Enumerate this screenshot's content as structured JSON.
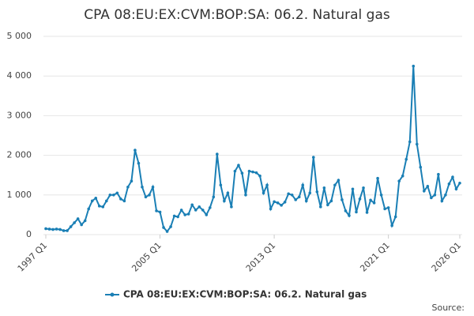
{
  "chart_data": {
    "type": "line",
    "title": "CPA 08:EU:EX:CVM:BOP:SA: 06.2. Natural gas",
    "source": "Source:",
    "categories": [
      "1997 Q1",
      null,
      null,
      null,
      null,
      null,
      null,
      null,
      null,
      null,
      null,
      null,
      null,
      null,
      null,
      null,
      null,
      null,
      null,
      null,
      null,
      null,
      null,
      null,
      null,
      null,
      null,
      null,
      null,
      null,
      null,
      null,
      "2005 Q1",
      null,
      null,
      null,
      null,
      null,
      null,
      null,
      null,
      null,
      null,
      null,
      null,
      null,
      null,
      null,
      null,
      null,
      null,
      null,
      null,
      null,
      null,
      null,
      null,
      null,
      null,
      null,
      null,
      null,
      null,
      null,
      "2013 Q1",
      null,
      null,
      null,
      null,
      null,
      null,
      null,
      null,
      null,
      null,
      null,
      null,
      null,
      null,
      null,
      null,
      null,
      null,
      null,
      null,
      null,
      null,
      null,
      null,
      null,
      null,
      null,
      null,
      null,
      null,
      null,
      "2021 Q1",
      null,
      null,
      null,
      null,
      null,
      null,
      null,
      null,
      null,
      null,
      null,
      null,
      null,
      null,
      null,
      null,
      null,
      null,
      null,
      "2026 Q1"
    ],
    "series": [
      {
        "name": "CPA 08:EU:EX:CVM:BOP:SA: 06.2. Natural gas",
        "color": "#1a7fb5",
        "values": [
          150,
          140,
          130,
          140,
          130,
          100,
          100,
          200,
          300,
          400,
          250,
          350,
          650,
          850,
          920,
          720,
          700,
          850,
          1000,
          1000,
          1050,
          900,
          850,
          1200,
          1350,
          2130,
          1800,
          1200,
          950,
          1000,
          1200,
          600,
          570,
          180,
          80,
          200,
          470,
          450,
          620,
          500,
          520,
          750,
          620,
          700,
          620,
          500,
          680,
          950,
          2030,
          1250,
          850,
          1050,
          700,
          1600,
          1750,
          1550,
          1000,
          1600,
          1580,
          1560,
          1480,
          1050,
          1250,
          650,
          830,
          800,
          740,
          820,
          1030,
          1000,
          880,
          950,
          1250,
          850,
          1050,
          1950,
          1080,
          700,
          1180,
          750,
          850,
          1250,
          1370,
          880,
          600,
          480,
          1150,
          570,
          900,
          1180,
          560,
          870,
          800,
          1420,
          1000,
          650,
          680,
          230,
          450,
          1350,
          1480,
          1900,
          2340,
          4250,
          2280,
          1700,
          1100,
          1220,
          930,
          1000,
          1520,
          850,
          1000,
          1280,
          1450,
          1150,
          1300
        ]
      }
    ],
    "ylim": [
      0,
      5000
    ],
    "yticks": [
      0,
      {
        "value": 1000,
        "label": "1 000"
      },
      {
        "value": 2000,
        "label": "2 000"
      },
      {
        "value": 3000,
        "label": "3 000"
      },
      {
        "value": 4000,
        "label": "4 000"
      },
      {
        "value": 5000,
        "label": "5 000"
      }
    ],
    "grid": true
  }
}
